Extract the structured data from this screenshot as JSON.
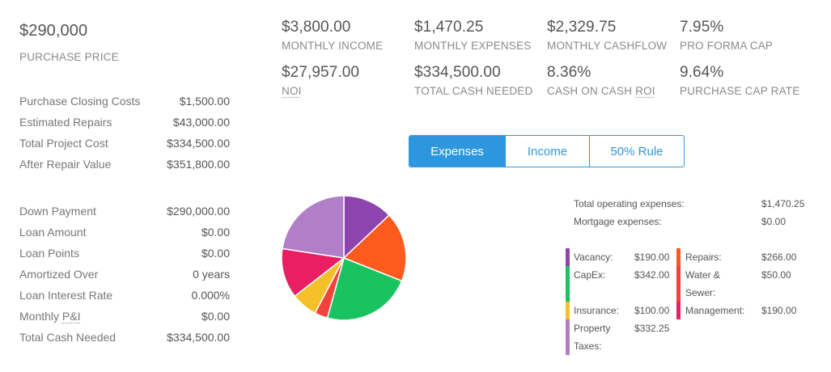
{
  "summary": {
    "purchase_price": "$290,000",
    "purchase_price_label": "PURCHASE PRICE"
  },
  "stats": {
    "monthly_income": {
      "value": "$3,800.00",
      "label": "MONTHLY INCOME"
    },
    "monthly_expenses": {
      "value": "$1,470.25",
      "label": "MONTHLY EXPENSES"
    },
    "monthly_cashflow": {
      "value": "$2,329.75",
      "label": "MONTHLY CASHFLOW"
    },
    "pro_forma_cap": {
      "value": "7.95%",
      "label": "PRO FORMA CAP"
    },
    "noi": {
      "value": "$27,957.00",
      "label": "NOI"
    },
    "total_cash_needed": {
      "value": "$334,500.00",
      "label": "TOTAL CASH NEEDED"
    },
    "cash_on_cash_roi": {
      "value": "8.36%",
      "label_prefix": "CASH ON CASH ",
      "label_abbr": "ROI"
    },
    "purchase_cap_rate": {
      "value": "9.64%",
      "label": "PURCHASE CAP RATE"
    }
  },
  "project": [
    {
      "label": "Purchase Closing Costs",
      "value": "$1,500.00"
    },
    {
      "label": "Estimated Repairs",
      "value": "$43,000.00"
    },
    {
      "label": "Total Project Cost",
      "value": "$334,500.00"
    },
    {
      "label": "After Repair Value",
      "value": "$351,800.00"
    }
  ],
  "financing": [
    {
      "label": "Down Payment",
      "value": "$290,000.00"
    },
    {
      "label": "Loan Amount",
      "value": "$0.00"
    },
    {
      "label": "Loan Points",
      "value": "$0.00"
    },
    {
      "label": "Amortized Over",
      "value": "0 years"
    },
    {
      "label": "Loan Interest Rate",
      "value": "0.000%"
    },
    {
      "label_prefix": "Monthly ",
      "label_abbr": "P&I",
      "value": "$0.00"
    },
    {
      "label": "Total Cash Needed",
      "value": "$334,500.00"
    }
  ],
  "tabs": {
    "expenses": "Expenses",
    "income": "Income",
    "rule50": "50% Rule"
  },
  "totals": {
    "operating_label": "Total operating expenses:",
    "operating_value": "$1,470.25",
    "mortgage_label": "Mortgage expenses:",
    "mortgage_value": "$0.00"
  },
  "legend": {
    "vacancy": {
      "label": "Vacancy:",
      "value": "$190.00",
      "color": "#8e44ad"
    },
    "capex": {
      "label": "CapEx:",
      "value": "$342.00",
      "color": "#19c35f"
    },
    "insurance": {
      "label": "Insurance:",
      "value": "$100.00",
      "color": "#f5c02a"
    },
    "property_taxes": {
      "label_line1": "Property",
      "label_line2": "Taxes:",
      "value": "$332.25",
      "color": "#b07fc7"
    },
    "repairs": {
      "label": "Repairs:",
      "value": "$266.00",
      "color": "#fd5a1e"
    },
    "water_sewer": {
      "label_line1": "Water &",
      "label_line2": "Sewer:",
      "value": "$50.00",
      "color": "#f5413b"
    },
    "management": {
      "label": "Management:",
      "value": "$190.00",
      "color": "#e91e63"
    }
  },
  "chart_data": {
    "type": "pie",
    "categories": [
      "Vacancy",
      "Repairs",
      "CapEx",
      "Water & Sewer",
      "Insurance",
      "Management",
      "Property Taxes"
    ],
    "values": [
      190.0,
      266.0,
      342.0,
      50.0,
      100.0,
      190.0,
      332.25
    ],
    "colors": [
      "#8e44ad",
      "#fd5a1e",
      "#19c35f",
      "#f5413b",
      "#f5c02a",
      "#e91e63",
      "#b07fc7"
    ]
  }
}
